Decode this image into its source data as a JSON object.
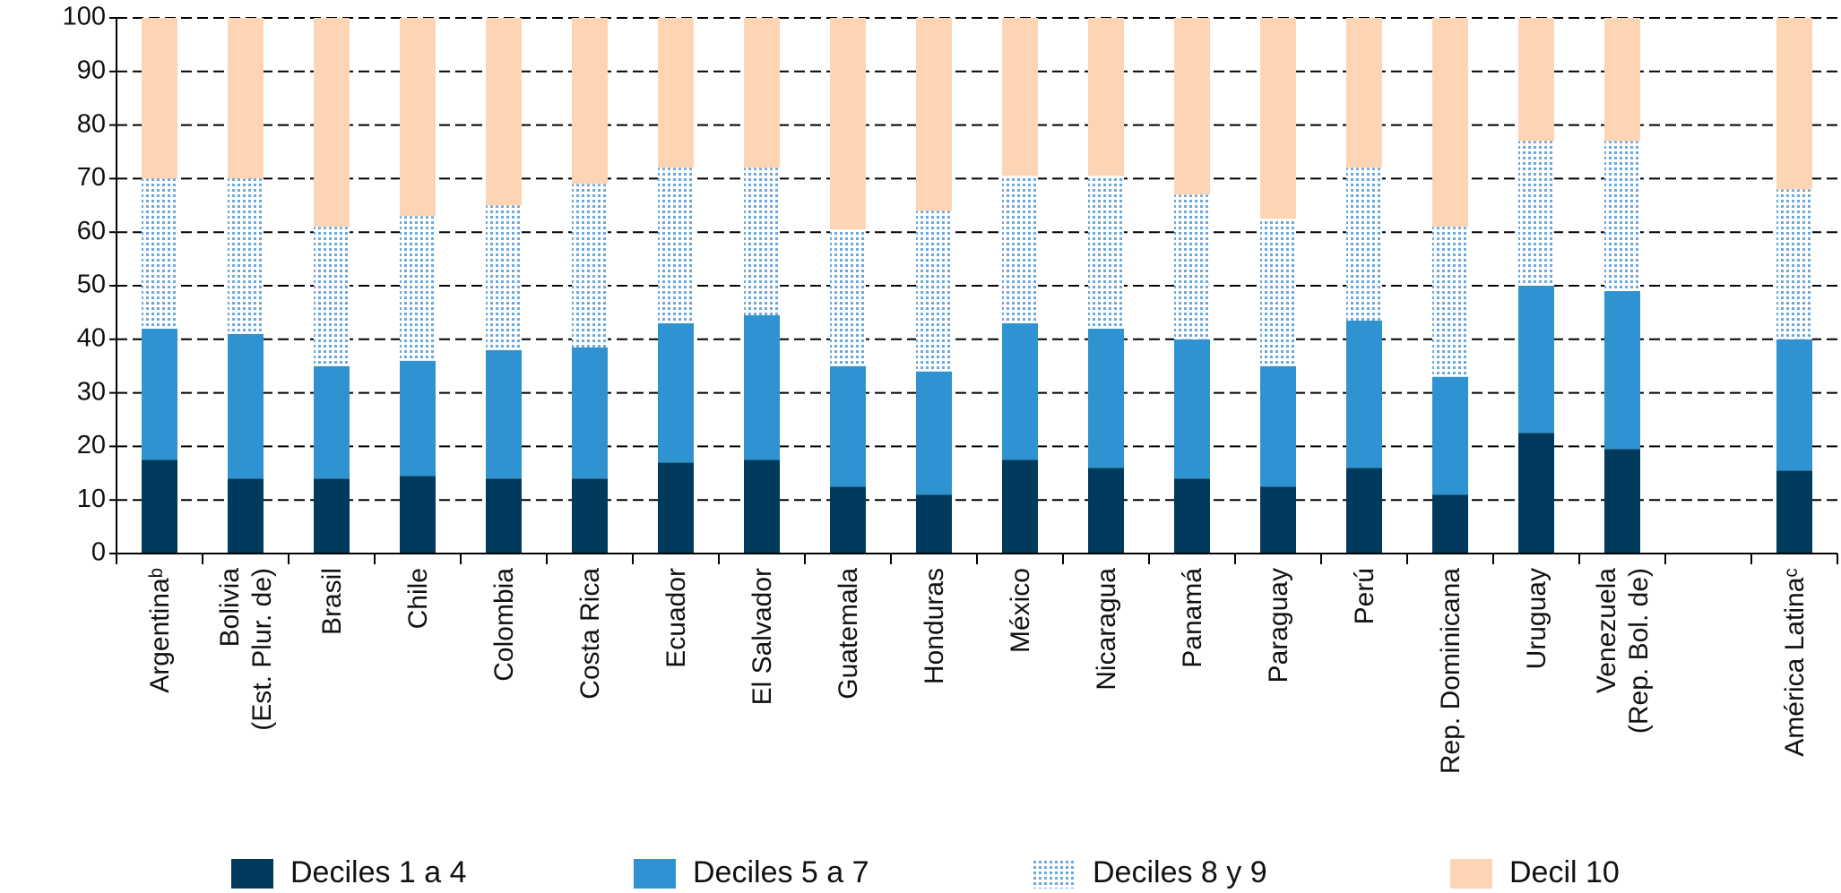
{
  "chart_data": {
    "type": "stacked-bar",
    "categories": [
      "Argentinaᵇ",
      "Bolivia\n(Est. Plur. de)",
      "Brasil",
      "Chile",
      "Colombia",
      "Costa Rica",
      "Ecuador",
      "El Salvador",
      "Guatemala",
      "Honduras",
      "México",
      "Nicaragua",
      "Panamá",
      "Paraguay",
      "Perú",
      "Rep. Dominicana",
      "Uruguay",
      "Venezuela\n(Rep. Bol. de)",
      null,
      "América Latinaᶜ"
    ],
    "series": [
      {
        "name": "Deciles 1 a 4",
        "color": "#003a5c",
        "values": [
          17.5,
          14,
          14,
          14.5,
          14,
          14,
          17,
          17.5,
          12.5,
          11,
          17.5,
          16,
          14,
          12.5,
          16,
          11,
          22.5,
          19.5,
          null,
          15.5
        ]
      },
      {
        "name": "Deciles 5 a 7",
        "color": "#2f93d1",
        "values": [
          24.5,
          27,
          21,
          21.5,
          24,
          24.5,
          26,
          27,
          22.5,
          23,
          25.5,
          26,
          26,
          22.5,
          27.5,
          22,
          27.5,
          29.5,
          null,
          24.5
        ]
      },
      {
        "name": "Deciles 8 y 9",
        "color": "#6aa8e0",
        "pattern": "dots",
        "values": [
          28,
          29,
          26,
          27,
          27,
          30.5,
          29,
          27.5,
          25.5,
          30,
          27.5,
          28.5,
          27,
          27.5,
          28.5,
          28,
          27,
          28,
          null,
          28
        ]
      },
      {
        "name": "Decil 10",
        "color": "#fdd5b4",
        "values": [
          30,
          30,
          39,
          37,
          35,
          31,
          28,
          28,
          39.5,
          36,
          29.5,
          29.5,
          33,
          37.5,
          28,
          39,
          23,
          23,
          null,
          32
        ]
      }
    ],
    "ylim": [
      0,
      100
    ],
    "yticks": [
      0,
      10,
      20,
      30,
      40,
      50,
      60,
      70,
      80,
      90,
      100
    ],
    "grid": true,
    "legend": "bottom"
  }
}
